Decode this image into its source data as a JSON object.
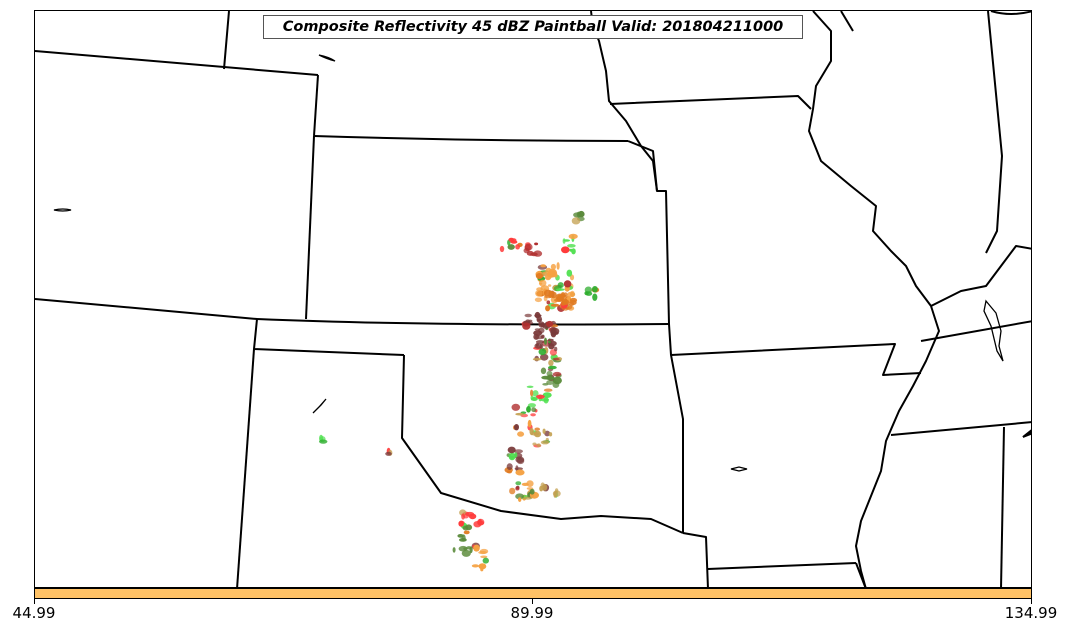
{
  "title": "Composite Reflectivity 45 dBZ Paintball Valid: 201804211000",
  "colorbar": {
    "color": "#ffc266",
    "ticks": [
      "44.99",
      "89.99",
      "134.99"
    ]
  },
  "paintball_palette": [
    "#ff3b3b",
    "#f5a142",
    "#4fe04f",
    "#7a3a3a",
    "#5a8a3a",
    "#c4a050",
    "#2fae2f",
    "#b03030",
    "#e07a20"
  ],
  "features": [
    "state-borders",
    "coastline-lakes",
    "mississippi-river",
    "paintball-echoes"
  ]
}
